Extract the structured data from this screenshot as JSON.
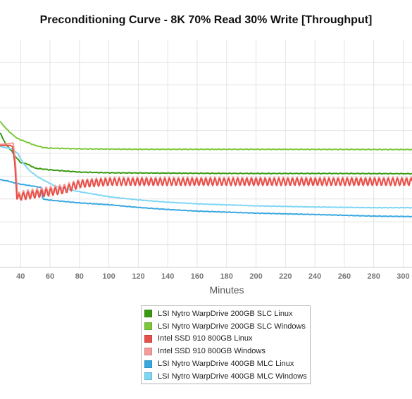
{
  "chart_data": {
    "type": "line",
    "title": "Preconditioning Curve - 8K 70% Read 30% Write [Throughput]",
    "xlabel": "Minutes",
    "ylabel": "",
    "xlim": [
      26,
      306
    ],
    "ylim": [
      0,
      100
    ],
    "x_ticks": [
      40,
      60,
      80,
      100,
      120,
      140,
      160,
      180,
      200,
      220,
      240,
      260,
      280,
      300
    ],
    "y_gridlines": [
      10,
      20,
      30,
      40,
      50,
      60,
      70,
      80,
      90
    ],
    "grid": true,
    "legend_position": "bottom",
    "series": [
      {
        "name": "LSI Nytro WarpDrive 200GB SLC Linux",
        "color": "#3a9a12",
        "oscillation": 0.2,
        "points": [
          [
            26,
            59
          ],
          [
            30,
            54
          ],
          [
            34,
            51
          ],
          [
            36,
            49
          ],
          [
            40,
            46
          ],
          [
            44,
            45.5
          ],
          [
            50,
            43.5
          ],
          [
            60,
            42.8
          ],
          [
            80,
            41.8
          ],
          [
            100,
            41.5
          ],
          [
            150,
            41.3
          ],
          [
            200,
            41.2
          ],
          [
            250,
            41.2
          ],
          [
            306,
            41.1
          ]
        ]
      },
      {
        "name": "LSI Nytro WarpDrive 200GB SLC Windows",
        "color": "#7cc83a",
        "oscillation": 0.2,
        "points": [
          [
            26,
            64
          ],
          [
            30,
            61
          ],
          [
            34,
            58.5
          ],
          [
            38,
            56.5
          ],
          [
            44,
            55
          ],
          [
            50,
            53.5
          ],
          [
            56,
            52.5
          ],
          [
            60,
            52.3
          ],
          [
            80,
            52
          ],
          [
            120,
            51.8
          ],
          [
            200,
            51.8
          ],
          [
            306,
            51.7
          ]
        ]
      },
      {
        "name": "Intel SSD 910 800GB Linux",
        "color": "#e8504a",
        "oscillation": 1.6,
        "points": [
          [
            26,
            53.5
          ],
          [
            33,
            53.5
          ],
          [
            34.5,
            53
          ],
          [
            36,
            46
          ],
          [
            37.5,
            30
          ],
          [
            40,
            31
          ],
          [
            50,
            32
          ],
          [
            60,
            33
          ],
          [
            70,
            34
          ],
          [
            80,
            36.5
          ],
          [
            100,
            37.5
          ],
          [
            150,
            37.5
          ],
          [
            200,
            37.5
          ],
          [
            250,
            37.5
          ],
          [
            306,
            37.5
          ]
        ]
      },
      {
        "name": "Intel SSD 910 800GB Windows",
        "color": "#f59b98",
        "oscillation": 1.6,
        "points": [
          [
            26,
            54
          ],
          [
            35,
            54.5
          ],
          [
            36.5,
            46
          ],
          [
            38,
            31
          ],
          [
            40,
            32
          ],
          [
            50,
            33
          ],
          [
            60,
            34
          ],
          [
            70,
            35
          ],
          [
            80,
            37
          ],
          [
            100,
            38
          ],
          [
            150,
            38
          ],
          [
            200,
            38
          ],
          [
            306,
            38
          ]
        ]
      },
      {
        "name": "LSI Nytro WarpDrive 400GB MLC Linux",
        "color": "#3aa8e0",
        "oscillation": 0.15,
        "points": [
          [
            26,
            38.5
          ],
          [
            32,
            37.8
          ],
          [
            36,
            37
          ],
          [
            40,
            36.5
          ],
          [
            50,
            35.5
          ],
          [
            54,
            35
          ],
          [
            55,
            30
          ],
          [
            60,
            29.5
          ],
          [
            80,
            28.3
          ],
          [
            100,
            27.5
          ],
          [
            120,
            26.3
          ],
          [
            140,
            25.4
          ],
          [
            160,
            24.7
          ],
          [
            200,
            23.8
          ],
          [
            240,
            23.2
          ],
          [
            280,
            22.5
          ],
          [
            306,
            22.3
          ]
        ]
      },
      {
        "name": "LSI Nytro WarpDrive 400GB MLC Windows",
        "color": "#7fd6f5",
        "oscillation": 0.15,
        "points": [
          [
            26,
            53
          ],
          [
            34,
            52
          ],
          [
            38,
            50
          ],
          [
            42,
            45.5
          ],
          [
            46,
            42.5
          ],
          [
            52,
            39.5
          ],
          [
            58,
            37.5
          ],
          [
            64,
            35.5
          ],
          [
            70,
            34.5
          ],
          [
            80,
            33.2
          ],
          [
            100,
            31
          ],
          [
            120,
            29.6
          ],
          [
            140,
            28.6
          ],
          [
            160,
            27.9
          ],
          [
            200,
            27
          ],
          [
            240,
            26.5
          ],
          [
            280,
            26.2
          ],
          [
            306,
            26.2
          ]
        ]
      }
    ]
  }
}
